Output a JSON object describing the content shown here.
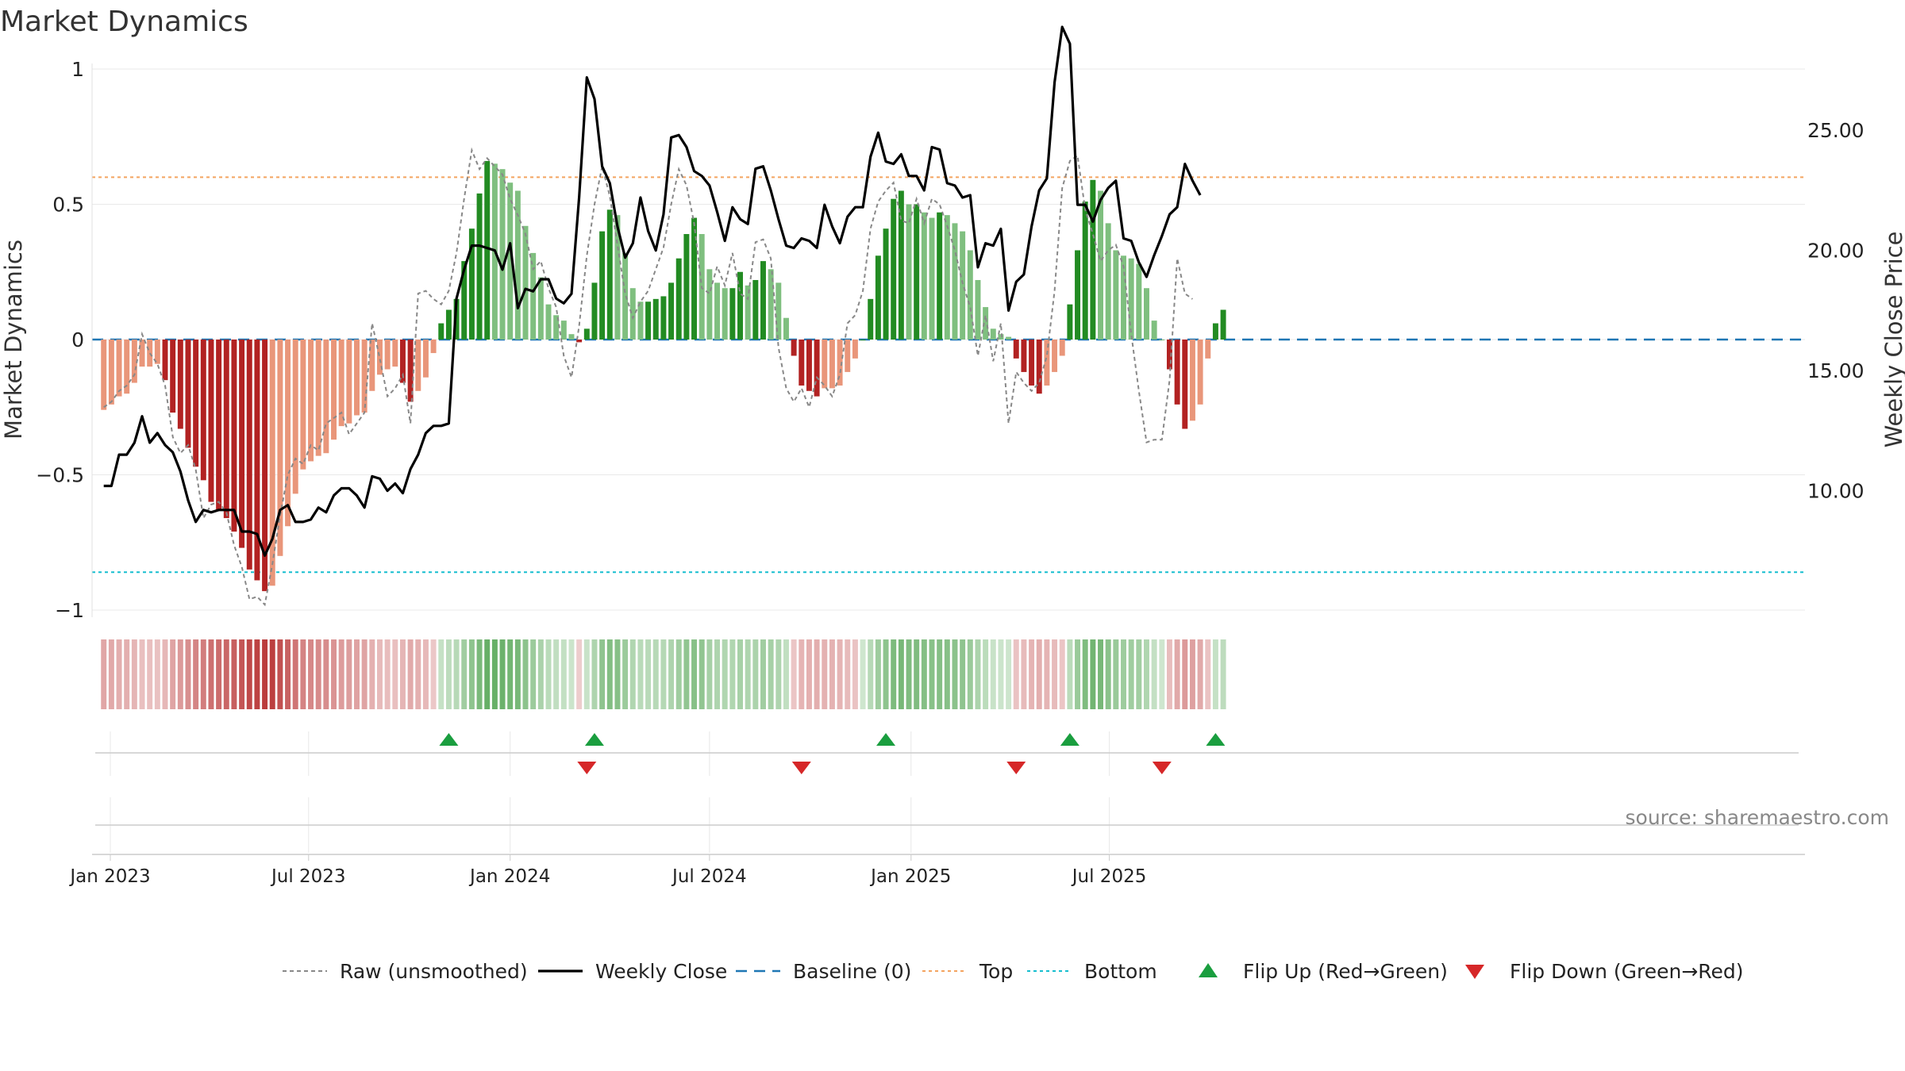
{
  "title": "Market Dynamics",
  "source_label": "source: sharemaestro.com",
  "colors": {
    "green_strong": "#228b22",
    "green_light": "#7fbf7f",
    "red_strong": "#b22222",
    "red_light": "#e9967a",
    "price_line": "#000000",
    "raw_line": "#888888",
    "baseline": "#1f77b4",
    "top_line": "#f4a460",
    "bottom_line": "#17becf",
    "flip_up": "#1a9e3f",
    "flip_down": "#d62728"
  },
  "chart_data": {
    "type": "bar",
    "title": "Market Dynamics",
    "ylabel": "Market Dynamics",
    "y2label": "Weekly Close Price",
    "ylim": [
      -1,
      1
    ],
    "y2lim": [
      5,
      27.55
    ],
    "y_ticks": [
      1,
      0.5,
      0,
      -0.5,
      -1
    ],
    "y_tick_labels": [
      "1",
      "0.5",
      "0",
      "−0.5",
      "−1"
    ],
    "y2_ticks": [
      25,
      20,
      15,
      10
    ],
    "y2_tick_labels": [
      "25.00",
      "20.00",
      "15.00",
      "10.00"
    ],
    "x_start": "2022-12-26",
    "x_step_days": 7,
    "x_ticks": [
      "2023-01-01",
      "2023-07-01",
      "2024-01-01",
      "2024-07-01",
      "2025-01-01",
      "2025-07-01"
    ],
    "x_tick_labels": [
      "Jan 2023",
      "Jul 2023",
      "Jan 2024",
      "Jul 2024",
      "Jan 2025",
      "Jul 2025"
    ],
    "top_threshold": 0.6,
    "bottom_threshold": -0.86,
    "baseline": 0,
    "grid": true,
    "legend_position": "bottom",
    "legend": [
      "Raw (unsmoothed)",
      "Weekly Close",
      "Baseline (0)",
      "Top",
      "Bottom",
      "Flip Up (Red→Green)",
      "Flip Down (Green→Red)"
    ],
    "series": [
      {
        "name": "Market Dynamics",
        "values": [
          -0.26,
          -0.24,
          -0.21,
          -0.2,
          -0.16,
          -0.1,
          -0.1,
          -0.09,
          -0.15,
          -0.27,
          -0.33,
          -0.4,
          -0.47,
          -0.52,
          -0.6,
          -0.63,
          -0.66,
          -0.71,
          -0.77,
          -0.85,
          -0.89,
          -0.93,
          -0.91,
          -0.8,
          -0.69,
          -0.57,
          -0.48,
          -0.45,
          -0.43,
          -0.42,
          -0.37,
          -0.32,
          -0.31,
          -0.28,
          -0.27,
          -0.19,
          -0.13,
          -0.11,
          -0.1,
          -0.16,
          -0.23,
          -0.19,
          -0.14,
          -0.05,
          0.06,
          0.11,
          0.15,
          0.29,
          0.41,
          0.54,
          0.66,
          0.65,
          0.63,
          0.58,
          0.55,
          0.42,
          0.32,
          0.23,
          0.13,
          0.09,
          0.07,
          0.02,
          -0.01,
          0.04,
          0.21,
          0.4,
          0.48,
          0.46,
          0.32,
          0.19,
          0.14,
          0.14,
          0.15,
          0.16,
          0.21,
          0.3,
          0.39,
          0.45,
          0.39,
          0.26,
          0.21,
          0.19,
          0.19,
          0.25,
          0.2,
          0.22,
          0.29,
          0.26,
          0.21,
          0.08,
          -0.06,
          -0.17,
          -0.19,
          -0.21,
          -0.18,
          -0.18,
          -0.17,
          -0.12,
          -0.07,
          0,
          0.15,
          0.31,
          0.41,
          0.52,
          0.55,
          0.5,
          0.5,
          0.47,
          0.45,
          0.47,
          0.46,
          0.43,
          0.4,
          0.33,
          0.22,
          0.12,
          0.04,
          0.02,
          0.01,
          -0.07,
          -0.12,
          -0.17,
          -0.2,
          -0.17,
          -0.12,
          -0.06,
          0.13,
          0.33,
          0.51,
          0.59,
          0.55,
          0.43,
          0.33,
          0.31,
          0.3,
          0.28,
          0.19,
          0.07,
          0,
          -0.11,
          -0.24,
          -0.33,
          -0.3,
          -0.24,
          -0.07,
          0.06,
          0.11
        ]
      },
      {
        "name": "Raw (unsmoothed)",
        "values": [
          -0.25,
          -0.23,
          -0.19,
          -0.17,
          -0.13,
          0.02,
          -0.05,
          -0.09,
          -0.17,
          -0.36,
          -0.42,
          -0.39,
          -0.48,
          -0.66,
          -0.61,
          -0.6,
          -0.64,
          -0.76,
          -0.84,
          -0.96,
          -0.95,
          -0.98,
          -0.83,
          -0.65,
          -0.5,
          -0.44,
          -0.46,
          -0.39,
          -0.41,
          -0.31,
          -0.29,
          -0.27,
          -0.35,
          -0.31,
          -0.27,
          0.06,
          -0.07,
          -0.21,
          -0.18,
          -0.13,
          -0.31,
          0.17,
          0.18,
          0.15,
          0.13,
          0.18,
          0.32,
          0.52,
          0.7,
          0.63,
          0.67,
          0.64,
          0.61,
          0.52,
          0.46,
          0.39,
          0.26,
          0.29,
          0.19,
          0.12,
          -0.06,
          -0.14,
          0.05,
          0.31,
          0.5,
          0.64,
          0.53,
          0.35,
          0.17,
          0.08,
          0.14,
          0.18,
          0.26,
          0.34,
          0.5,
          0.63,
          0.57,
          0.43,
          0.19,
          0.17,
          0.27,
          0.2,
          0.32,
          0.17,
          0.15,
          0.36,
          0.37,
          0.3,
          -0.03,
          -0.18,
          -0.23,
          -0.18,
          -0.25,
          -0.14,
          -0.17,
          -0.21,
          -0.13,
          0.06,
          0.09,
          0.18,
          0.41,
          0.51,
          0.55,
          0.58,
          0.44,
          0.43,
          0.52,
          0.43,
          0.52,
          0.5,
          0.42,
          0.33,
          0.21,
          0.12,
          -0.06,
          0.09,
          -0.08,
          0.06,
          -0.31,
          -0.12,
          -0.16,
          -0.19,
          -0.16,
          -0.06,
          0.18,
          0.56,
          0.66,
          0.68,
          0.48,
          0.39,
          0.29,
          0.33,
          0.35,
          0.27,
          0.02,
          -0.19,
          -0.38,
          -0.37,
          -0.37,
          -0.15,
          0.3,
          0.17,
          0.15
        ]
      },
      {
        "name": "Weekly Close",
        "values": [
          10.2,
          10.2,
          11.5,
          11.5,
          12,
          13.1,
          12,
          12.4,
          11.9,
          11.6,
          10.8,
          9.6,
          8.7,
          9.2,
          9.1,
          9.2,
          9.2,
          9.2,
          8.3,
          8.3,
          8.2,
          7.3,
          8,
          9.2,
          9.4,
          8.7,
          8.7,
          8.8,
          9.3,
          9.1,
          9.8,
          10.1,
          10.1,
          9.8,
          9.3,
          10.6,
          10.5,
          10,
          10.3,
          9.9,
          10.9,
          11.5,
          12.4,
          12.7,
          12.7,
          12.8,
          18,
          19.2,
          20.2,
          20.2,
          20.1,
          20,
          19.2,
          20.3,
          17.6,
          18.4,
          18.3,
          18.8,
          18.8,
          18,
          17.8,
          18.2,
          22.2,
          27.2,
          26.3,
          23.5,
          22.8,
          21,
          19.7,
          20.3,
          22.2,
          20.8,
          20,
          21.5,
          24.7,
          24.8,
          24.3,
          23.3,
          23.1,
          22.7,
          21.6,
          20.4,
          21.8,
          21.3,
          21.1,
          23.4,
          23.5,
          22.5,
          21.3,
          20.2,
          20.1,
          20.5,
          20.4,
          20.1,
          21.9,
          21,
          20.3,
          21.4,
          21.8,
          21.8,
          23.9,
          24.9,
          23.7,
          23.6,
          24,
          23.1,
          23.1,
          22.5,
          24.3,
          24.2,
          22.8,
          22.7,
          22.2,
          22.3,
          19.3,
          20.3,
          20.2,
          20.9,
          17.5,
          18.7,
          19,
          21,
          22.5,
          23,
          27,
          29.3,
          28.6,
          21.9,
          21.9,
          21.2,
          22.1,
          22.6,
          22.9,
          20.5,
          20.4,
          19.5,
          18.9,
          19.8,
          20.6,
          21.5,
          21.8,
          23.6,
          22.9,
          22.3
        ]
      }
    ],
    "flip_up_dates": [
      "2023-11-06",
      "2024-03-18",
      "2024-12-09",
      "2025-05-26",
      "2025-10-06"
    ],
    "flip_down_dates": [
      "2024-03-11",
      "2024-09-23",
      "2025-04-07",
      "2025-08-18"
    ]
  }
}
